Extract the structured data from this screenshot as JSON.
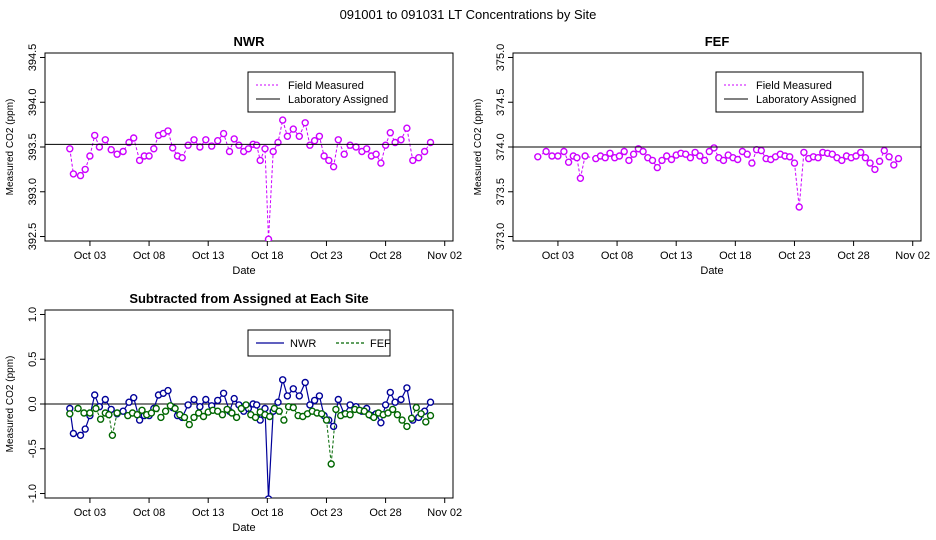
{
  "figure": {
    "title": "091001  to  091031 LT Concentrations by Site"
  },
  "chart_data": [
    {
      "type": "line",
      "title": "NWR",
      "xlabel": "Date",
      "ylabel": "Measured CO2 (ppm)",
      "x_unit": "day of October 2009",
      "xlim": [
        -0.8,
        33.7
      ],
      "ylim": [
        392.45,
        394.55
      ],
      "xticks": [
        3,
        8,
        13,
        18,
        23,
        28,
        33
      ],
      "xtick_labels": [
        "Oct 03",
        "Oct 08",
        "Oct 13",
        "Oct 18",
        "Oct 23",
        "Oct 28",
        "Nov 02"
      ],
      "yticks": [
        392.5,
        393.0,
        393.5,
        394.0,
        394.5
      ],
      "ytick_labels": [
        "392.5",
        "393.0",
        "393.5",
        "394.0",
        "394.5"
      ],
      "legend": {
        "position": "top-right",
        "entries": [
          "Field Measured",
          "Laboratory Assigned"
        ]
      },
      "series": [
        {
          "name": "Field Measured",
          "color": "#cc00ff",
          "style": "dashed-with-circles",
          "x": [
            1.3,
            1.6,
            2.2,
            2.6,
            3.0,
            3.4,
            3.8,
            4.3,
            4.8,
            5.3,
            5.8,
            6.3,
            6.7,
            7.2,
            7.6,
            8.0,
            8.4,
            8.8,
            9.2,
            9.6,
            10.0,
            10.4,
            10.8,
            11.3,
            11.8,
            12.3,
            12.8,
            13.3,
            13.8,
            14.3,
            14.8,
            15.2,
            15.6,
            16.0,
            16.4,
            16.8,
            17.1,
            17.4,
            17.8,
            18.1,
            18.5,
            18.9,
            19.3,
            19.7,
            20.2,
            20.7,
            21.2,
            21.6,
            22.0,
            22.4,
            22.8,
            23.2,
            23.6,
            24.0,
            24.5,
            25.0,
            25.5,
            26.0,
            26.4,
            26.8,
            27.2,
            27.6,
            28.0,
            28.4,
            28.8,
            29.3,
            29.8,
            30.3,
            30.8,
            31.3,
            31.8
          ],
          "values": [
            393.48,
            393.2,
            393.18,
            393.25,
            393.4,
            393.63,
            393.5,
            393.58,
            393.47,
            393.42,
            393.45,
            393.55,
            393.6,
            393.35,
            393.4,
            393.4,
            393.48,
            393.63,
            393.65,
            393.68,
            393.49,
            393.4,
            393.38,
            393.52,
            393.58,
            393.5,
            393.58,
            393.51,
            393.57,
            393.65,
            393.45,
            393.59,
            393.52,
            393.45,
            393.48,
            393.53,
            393.52,
            393.35,
            393.48,
            392.47,
            393.45,
            393.55,
            393.8,
            393.62,
            393.7,
            393.62,
            393.77,
            393.52,
            393.57,
            393.62,
            393.4,
            393.35,
            393.28,
            393.58,
            393.42,
            393.52,
            393.5,
            393.45,
            393.48,
            393.4,
            393.42,
            393.32,
            393.52,
            393.66,
            393.55,
            393.58,
            393.71,
            393.35,
            393.38,
            393.45,
            393.55
          ]
        },
        {
          "name": "Laboratory Assigned",
          "color": "#000000",
          "style": "solid",
          "constant": 393.53
        }
      ]
    },
    {
      "type": "line",
      "title": "FEF",
      "xlabel": "Date",
      "ylabel": "Measured CO2 (ppm)",
      "x_unit": "day of October 2009",
      "xlim": [
        -0.8,
        33.7
      ],
      "ylim": [
        372.95,
        375.05
      ],
      "xticks": [
        3,
        8,
        13,
        18,
        23,
        28,
        33
      ],
      "xtick_labels": [
        "Oct 03",
        "Oct 08",
        "Oct 13",
        "Oct 18",
        "Oct 23",
        "Oct 28",
        "Nov 02"
      ],
      "yticks": [
        373.0,
        373.5,
        374.0,
        374.5,
        375.0
      ],
      "ytick_labels": [
        "373.0",
        "373.5",
        "374.0",
        "374.5",
        "375.0"
      ],
      "legend": {
        "position": "top-right",
        "entries": [
          "Field Measured",
          "Laboratory Assigned"
        ]
      },
      "series": [
        {
          "name": "Field Measured",
          "color": "#cc00ff",
          "style": "dashed-with-circles",
          "x": [
            1.3,
            2.0,
            2.5,
            3.0,
            3.5,
            3.9,
            4.3,
            4.6,
            4.9,
            5.3,
            6.2,
            6.6,
            7.0,
            7.4,
            7.8,
            8.2,
            8.6,
            9.0,
            9.4,
            9.8,
            10.2,
            10.6,
            11.0,
            11.4,
            11.8,
            12.2,
            12.6,
            13.0,
            13.4,
            13.8,
            14.2,
            14.6,
            15.0,
            15.4,
            15.8,
            16.2,
            16.6,
            17.0,
            17.4,
            17.8,
            18.2,
            18.6,
            19.0,
            19.4,
            19.8,
            20.2,
            20.6,
            21.0,
            21.4,
            21.8,
            22.2,
            22.6,
            23.0,
            23.4,
            23.8,
            24.2,
            24.6,
            25.0,
            25.4,
            25.8,
            26.2,
            26.6,
            27.0,
            27.4,
            27.8,
            28.2,
            28.6,
            29.0,
            29.4,
            29.8,
            30.2,
            30.6,
            31.0,
            31.4,
            31.8
          ],
          "values": [
            373.89,
            373.95,
            373.9,
            373.9,
            373.95,
            373.83,
            373.9,
            373.88,
            373.65,
            373.9,
            373.87,
            373.9,
            373.88,
            373.93,
            373.88,
            373.9,
            373.95,
            373.85,
            373.92,
            373.98,
            373.95,
            373.88,
            373.85,
            373.77,
            373.85,
            373.9,
            373.86,
            373.91,
            373.93,
            373.92,
            373.88,
            373.94,
            373.9,
            373.85,
            373.95,
            373.99,
            373.88,
            373.85,
            373.91,
            373.88,
            373.86,
            373.95,
            373.92,
            373.82,
            373.97,
            373.96,
            373.87,
            373.86,
            373.89,
            373.92,
            373.9,
            373.89,
            373.82,
            373.33,
            373.94,
            373.87,
            373.89,
            373.88,
            373.94,
            373.93,
            373.92,
            373.88,
            373.85,
            373.9,
            373.88,
            373.9,
            373.94,
            373.88,
            373.82,
            373.75,
            373.84,
            373.96,
            373.89,
            373.8,
            373.87
          ]
        },
        {
          "name": "Laboratory Assigned",
          "color": "#000000",
          "style": "solid",
          "constant": 374.0
        }
      ]
    },
    {
      "type": "line",
      "title": "Subtracted from Assigned at Each Site",
      "xlabel": "Date",
      "ylabel": "Measured CO2 (ppm)",
      "x_unit": "day of October 2009",
      "xlim": [
        -0.8,
        33.7
      ],
      "ylim": [
        -1.05,
        1.05
      ],
      "xticks": [
        3,
        8,
        13,
        18,
        23,
        28,
        33
      ],
      "xtick_labels": [
        "Oct 03",
        "Oct 08",
        "Oct 13",
        "Oct 18",
        "Oct 23",
        "Oct 28",
        "Nov 02"
      ],
      "yticks": [
        -1.0,
        -0.5,
        0.0,
        0.5,
        1.0
      ],
      "ytick_labels": [
        "-1.0",
        "-0.5",
        "0.0",
        "0.5",
        "1.0"
      ],
      "reference_line": 0.0,
      "legend": {
        "position": "top-center",
        "entries": [
          "NWR",
          "FEF"
        ]
      },
      "series": [
        {
          "name": "NWR",
          "color": "#000099",
          "style": "solid-with-circles",
          "x": [
            1.3,
            1.6,
            2.2,
            2.6,
            3.0,
            3.4,
            3.8,
            4.3,
            4.8,
            5.3,
            5.8,
            6.3,
            6.7,
            7.2,
            7.6,
            8.0,
            8.4,
            8.8,
            9.2,
            9.6,
            10.0,
            10.4,
            10.8,
            11.3,
            11.8,
            12.3,
            12.8,
            13.3,
            13.8,
            14.3,
            14.8,
            15.2,
            15.6,
            16.0,
            16.4,
            16.8,
            17.1,
            17.4,
            17.8,
            18.1,
            18.5,
            18.9,
            19.3,
            19.7,
            20.2,
            20.7,
            21.2,
            21.6,
            22.0,
            22.4,
            22.8,
            23.2,
            23.6,
            24.0,
            24.5,
            25.0,
            25.5,
            26.0,
            26.4,
            26.8,
            27.2,
            27.6,
            28.0,
            28.4,
            28.8,
            29.3,
            29.8,
            30.3,
            30.8,
            31.3,
            31.8
          ],
          "values": [
            -0.05,
            -0.33,
            -0.35,
            -0.28,
            -0.13,
            0.1,
            -0.03,
            0.05,
            -0.06,
            -0.11,
            -0.08,
            0.02,
            0.07,
            -0.18,
            -0.13,
            -0.13,
            -0.05,
            0.1,
            0.12,
            0.15,
            -0.04,
            -0.13,
            -0.15,
            -0.01,
            0.05,
            -0.03,
            0.05,
            -0.02,
            0.04,
            0.12,
            -0.08,
            0.06,
            -0.01,
            -0.08,
            -0.05,
            0.0,
            -0.01,
            -0.18,
            -0.05,
            -1.06,
            -0.08,
            0.02,
            0.27,
            0.09,
            0.17,
            0.09,
            0.24,
            -0.01,
            0.04,
            0.09,
            -0.13,
            -0.18,
            -0.25,
            0.05,
            -0.11,
            -0.01,
            -0.03,
            -0.08,
            -0.05,
            -0.13,
            -0.11,
            -0.21,
            -0.01,
            0.13,
            0.02,
            0.05,
            0.18,
            -0.18,
            -0.15,
            -0.08,
            0.02
          ]
        },
        {
          "name": "FEF",
          "color": "#006600",
          "style": "dashed-with-circles",
          "x": [
            1.3,
            2.0,
            2.5,
            3.0,
            3.5,
            3.9,
            4.3,
            4.6,
            4.9,
            5.3,
            6.2,
            6.6,
            7.0,
            7.4,
            7.8,
            8.2,
            8.6,
            9.0,
            9.4,
            9.8,
            10.2,
            10.6,
            11.0,
            11.4,
            11.8,
            12.2,
            12.6,
            13.0,
            13.4,
            13.8,
            14.2,
            14.6,
            15.0,
            15.4,
            15.8,
            16.2,
            16.6,
            17.0,
            17.4,
            17.8,
            18.2,
            18.6,
            19.0,
            19.4,
            19.8,
            20.2,
            20.6,
            21.0,
            21.4,
            21.8,
            22.2,
            22.6,
            23.0,
            23.4,
            23.8,
            24.2,
            24.6,
            25.0,
            25.4,
            25.8,
            26.2,
            26.6,
            27.0,
            27.4,
            27.8,
            28.2,
            28.6,
            29.0,
            29.4,
            29.8,
            30.2,
            30.6,
            31.0,
            31.4,
            31.8
          ],
          "values": [
            -0.11,
            -0.05,
            -0.1,
            -0.1,
            -0.05,
            -0.17,
            -0.1,
            -0.12,
            -0.35,
            -0.1,
            -0.13,
            -0.1,
            -0.12,
            -0.07,
            -0.12,
            -0.1,
            -0.05,
            -0.15,
            -0.08,
            -0.02,
            -0.05,
            -0.12,
            -0.15,
            -0.23,
            -0.15,
            -0.1,
            -0.14,
            -0.09,
            -0.07,
            -0.08,
            -0.12,
            -0.06,
            -0.1,
            -0.15,
            -0.05,
            -0.01,
            -0.12,
            -0.15,
            -0.09,
            -0.12,
            -0.14,
            -0.05,
            -0.08,
            -0.18,
            -0.03,
            -0.04,
            -0.13,
            -0.14,
            -0.11,
            -0.08,
            -0.1,
            -0.11,
            -0.18,
            -0.67,
            -0.06,
            -0.13,
            -0.11,
            -0.12,
            -0.06,
            -0.07,
            -0.08,
            -0.12,
            -0.15,
            -0.1,
            -0.12,
            -0.1,
            -0.06,
            -0.12,
            -0.18,
            -0.25,
            -0.16,
            -0.04,
            -0.11,
            -0.2,
            -0.13
          ]
        }
      ]
    }
  ]
}
